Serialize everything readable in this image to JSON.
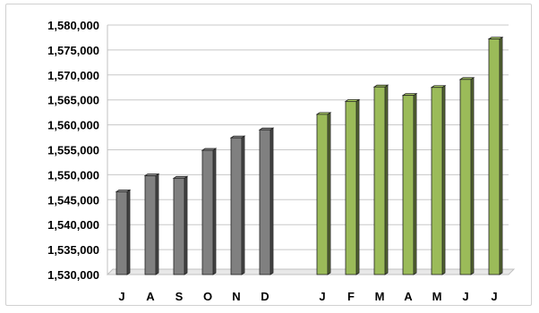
{
  "chart_data": {
    "type": "bar",
    "categories": [
      "J",
      "A",
      "S",
      "O",
      "N",
      "D",
      "",
      "J",
      "F",
      "M",
      "A",
      "M",
      "J",
      "J"
    ],
    "values": [
      1546600,
      1549800,
      1549300,
      1554900,
      1557400,
      1559000,
      null,
      1562100,
      1564700,
      1567600,
      1565900,
      1567500,
      1569100,
      1577200
    ],
    "groups": [
      {
        "months": [
          "J",
          "A",
          "S",
          "O",
          "N",
          "D"
        ],
        "color": "#808080"
      },
      {
        "months": [
          "J",
          "F",
          "M",
          "A",
          "M",
          "J",
          "J"
        ],
        "color": "#9BBB59"
      }
    ],
    "ylim": [
      1530000,
      1580000
    ],
    "yticks": [
      "1,530,000",
      "1,535,000",
      "1,540,000",
      "1,545,000",
      "1,550,000",
      "1,555,000",
      "1,560,000",
      "1,565,000",
      "1,570,000",
      "1,575,000",
      "1,580,000"
    ],
    "grid": true,
    "legend": "none",
    "title": "",
    "xlabel": "",
    "ylabel": ""
  }
}
